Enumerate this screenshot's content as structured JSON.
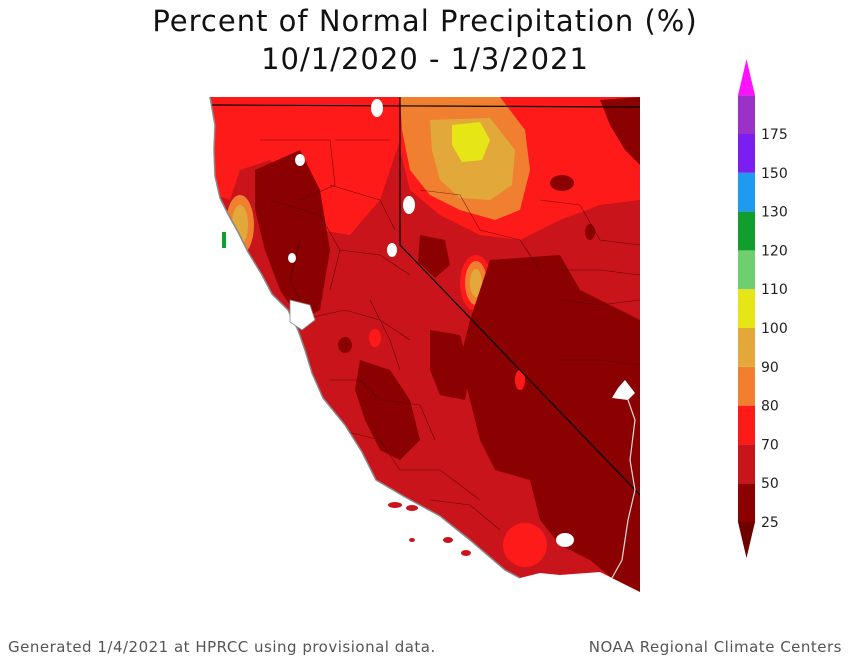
{
  "title": "Percent of Normal Precipitation (%)",
  "subtitle": "10/1/2020 - 1/3/2021",
  "footer": {
    "left": "Generated 1/4/2021 at HPRCC using provisional data.",
    "right": "NOAA Regional Climate Centers"
  },
  "legend": {
    "bins": [
      {
        "label": "25",
        "color": "#8b0000"
      },
      {
        "label": "50",
        "color": "#c8141a"
      },
      {
        "label": "70",
        "color": "#ff1a1a"
      },
      {
        "label": "80",
        "color": "#f08030"
      },
      {
        "label": "90",
        "color": "#e3a83a"
      },
      {
        "label": "100",
        "color": "#e6e617"
      },
      {
        "label": "110",
        "color": "#6fce6f"
      },
      {
        "label": "120",
        "color": "#129e2e"
      },
      {
        "label": "130",
        "color": "#1e9bef"
      },
      {
        "label": "150",
        "color": "#7a1ef2"
      },
      {
        "label": "175",
        "color": "#9a32c8"
      }
    ],
    "top_arrow_color": "#ff10ff",
    "bottom_arrow_color": "#6e0000"
  },
  "map": {
    "region": "California and Nevada",
    "background_color": "#c8141a"
  }
}
